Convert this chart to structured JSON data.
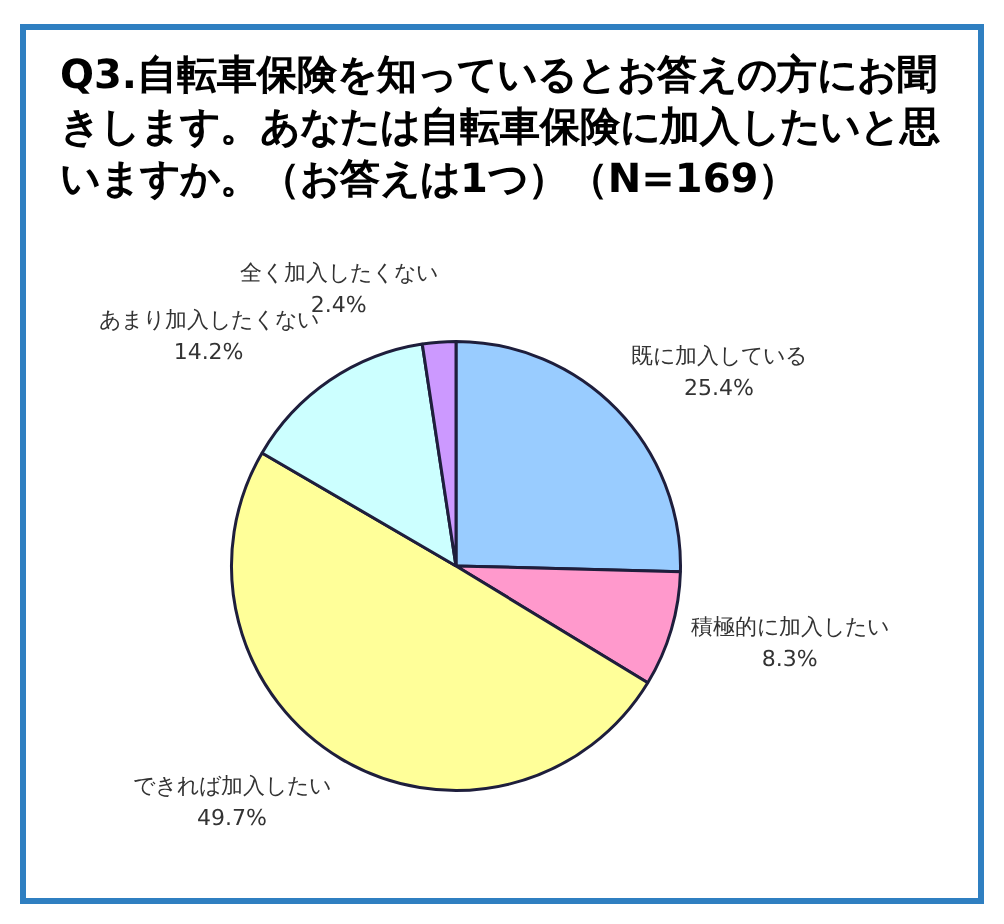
{
  "chart_data": {
    "type": "pie",
    "title": "Q3.自転車保険を知っているとお答えの方にお聞きします。あなたは自転車保険に加入したいと思いますか。（お答えは1つ）（N=169）",
    "categories": [
      "既に加入している",
      "積極的に加入したい",
      "できれば加入したい",
      "あまり加入したくない",
      "全く加入したくない"
    ],
    "values": [
      25.4,
      8.3,
      49.7,
      14.2,
      2.4
    ],
    "colors": [
      "#99ccff",
      "#ff99cc",
      "#ffff99",
      "#ccffff",
      "#cc99ff"
    ],
    "value_labels": [
      "25.4%",
      "8.3%",
      "49.7%",
      "14.2%",
      "2.4%"
    ]
  }
}
